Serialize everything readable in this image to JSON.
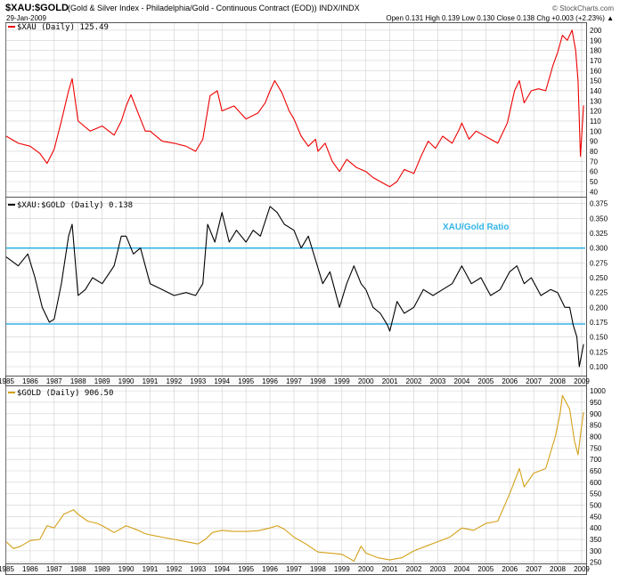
{
  "header": {
    "symbol": "$XAU:$GOLD",
    "description": "(Gold & Silver Index - Philadelphia/Gold - Continuous Contract (EOD)) INDX/INDX",
    "date": "29-Jan-2009",
    "watermark": "© StockCharts.com",
    "quote": "Open 0.131  High 0.139  Low 0.130  Close 0.138  Chg +0.003 (+2.23%) ▲"
  },
  "colors": {
    "xau": "#ee0000",
    "ratio": "#000000",
    "gold": "#d4a017",
    "ref_lines": "#33b5e5",
    "grid": "#d0d0d0",
    "annotation": "#33b5e5"
  },
  "years": [
    "1985",
    "1986",
    "1987",
    "1988",
    "1989",
    "1990",
    "1991",
    "1992",
    "1993",
    "1994",
    "1995",
    "1996",
    "1997",
    "1998",
    "1999",
    "2000",
    "2001",
    "2002",
    "2003",
    "2004",
    "2005",
    "2006",
    "2007",
    "2008",
    "2009"
  ],
  "chart_data": [
    {
      "type": "line",
      "id": "xau",
      "legend": "$XAU (Daily) 125.49",
      "color": "#ee0000",
      "ylim": [
        35,
        207
      ],
      "yticks": [
        40,
        50,
        60,
        70,
        80,
        90,
        100,
        110,
        120,
        130,
        140,
        150,
        160,
        170,
        180,
        190,
        200
      ],
      "x": [
        1985.0,
        1985.5,
        1986.0,
        1986.4,
        1986.7,
        1987.0,
        1987.3,
        1987.6,
        1987.75,
        1988.0,
        1988.5,
        1989.0,
        1989.5,
        1989.8,
        1990.0,
        1990.2,
        1990.5,
        1990.8,
        1991.0,
        1991.5,
        1992.0,
        1992.5,
        1992.9,
        1993.2,
        1993.5,
        1993.8,
        1994.0,
        1994.5,
        1995.0,
        1995.5,
        1995.8,
        1996.0,
        1996.2,
        1996.5,
        1996.8,
        1997.0,
        1997.3,
        1997.6,
        1997.9,
        1998.0,
        1998.3,
        1998.6,
        1998.9,
        1999.2,
        1999.6,
        1999.8,
        2000.0,
        2000.3,
        2000.6,
        2000.9,
        2001.0,
        2001.3,
        2001.6,
        2002.0,
        2002.3,
        2002.6,
        2002.9,
        2003.2,
        2003.6,
        2003.9,
        2004.0,
        2004.3,
        2004.6,
        2004.9,
        2005.2,
        2005.5,
        2005.9,
        2006.2,
        2006.4,
        2006.6,
        2006.9,
        2007.2,
        2007.5,
        2007.8,
        2008.0,
        2008.2,
        2008.4,
        2008.6,
        2008.75,
        2008.85,
        2008.95,
        2009.08
      ],
      "y": [
        95,
        88,
        85,
        78,
        68,
        82,
        110,
        140,
        152,
        110,
        100,
        105,
        96,
        110,
        125,
        136,
        118,
        100,
        100,
        90,
        88,
        85,
        80,
        92,
        135,
        140,
        120,
        125,
        112,
        118,
        128,
        140,
        150,
        138,
        120,
        112,
        95,
        85,
        92,
        80,
        88,
        70,
        60,
        72,
        64,
        62,
        60,
        54,
        50,
        46,
        45,
        50,
        62,
        58,
        75,
        90,
        83,
        95,
        88,
        102,
        108,
        92,
        100,
        96,
        92,
        88,
        108,
        140,
        150,
        128,
        140,
        142,
        140,
        165,
        178,
        195,
        190,
        200,
        180,
        150,
        75,
        125.49
      ]
    },
    {
      "type": "line",
      "id": "ratio",
      "legend": "$XAU:$GOLD (Daily) 0.138",
      "annotation": "XAU/Gold Ratio",
      "color": "#000000",
      "ylim": [
        0.085,
        0.385
      ],
      "yticks": [
        0.1,
        0.125,
        0.15,
        0.175,
        0.2,
        0.225,
        0.25,
        0.275,
        0.3,
        0.325,
        0.35,
        0.375
      ],
      "reference_lines": [
        0.3,
        0.172
      ],
      "x": [
        1985.0,
        1985.5,
        1985.9,
        1986.2,
        1986.5,
        1986.8,
        1987.0,
        1987.3,
        1987.6,
        1987.75,
        1988.0,
        1988.3,
        1988.6,
        1989.0,
        1989.5,
        1989.8,
        1990.0,
        1990.3,
        1990.6,
        1991.0,
        1991.5,
        1992.0,
        1992.5,
        1992.9,
        1993.2,
        1993.4,
        1993.7,
        1994.0,
        1994.3,
        1994.6,
        1995.0,
        1995.3,
        1995.6,
        1996.0,
        1996.3,
        1996.6,
        1997.0,
        1997.3,
        1997.6,
        1997.9,
        1998.2,
        1998.5,
        1998.9,
        1999.2,
        1999.5,
        1999.8,
        2000.0,
        2000.3,
        2000.6,
        2000.9,
        2001.0,
        2001.3,
        2001.6,
        2002.0,
        2002.4,
        2002.8,
        2003.2,
        2003.6,
        2004.0,
        2004.4,
        2004.8,
        2005.2,
        2005.6,
        2006.0,
        2006.3,
        2006.6,
        2006.9,
        2007.3,
        2007.7,
        2008.0,
        2008.3,
        2008.5,
        2008.65,
        2008.8,
        2008.9,
        2009.08
      ],
      "y": [
        0.285,
        0.27,
        0.29,
        0.25,
        0.2,
        0.175,
        0.18,
        0.24,
        0.32,
        0.34,
        0.22,
        0.23,
        0.25,
        0.24,
        0.27,
        0.32,
        0.32,
        0.29,
        0.3,
        0.24,
        0.23,
        0.22,
        0.225,
        0.22,
        0.24,
        0.34,
        0.31,
        0.36,
        0.31,
        0.33,
        0.31,
        0.33,
        0.32,
        0.37,
        0.36,
        0.34,
        0.33,
        0.3,
        0.32,
        0.28,
        0.24,
        0.26,
        0.2,
        0.24,
        0.27,
        0.24,
        0.23,
        0.2,
        0.19,
        0.17,
        0.16,
        0.21,
        0.19,
        0.2,
        0.23,
        0.22,
        0.23,
        0.24,
        0.27,
        0.24,
        0.25,
        0.22,
        0.23,
        0.26,
        0.27,
        0.24,
        0.25,
        0.22,
        0.23,
        0.225,
        0.2,
        0.2,
        0.17,
        0.15,
        0.1,
        0.138
      ]
    },
    {
      "type": "line",
      "id": "gold",
      "legend": "$GOLD (Daily) 906.50",
      "color": "#d4a017",
      "ylim": [
        245,
        1020
      ],
      "yticks": [
        250,
        300,
        350,
        400,
        450,
        500,
        550,
        600,
        650,
        700,
        750,
        800,
        850,
        900,
        950,
        1000
      ],
      "x": [
        1985.0,
        1985.3,
        1985.6,
        1986.0,
        1986.4,
        1986.7,
        1987.0,
        1987.4,
        1987.8,
        1988.0,
        1988.4,
        1988.8,
        1989.0,
        1989.5,
        1990.0,
        1990.5,
        1990.8,
        1991.0,
        1991.5,
        1992.0,
        1992.5,
        1993.0,
        1993.3,
        1993.6,
        1994.0,
        1994.5,
        1995.0,
        1995.5,
        1996.0,
        1996.3,
        1996.6,
        1997.0,
        1997.5,
        1998.0,
        1998.5,
        1999.0,
        1999.5,
        1999.8,
        2000.0,
        2000.5,
        2001.0,
        2001.5,
        2002.0,
        2002.5,
        2003.0,
        2003.5,
        2004.0,
        2004.5,
        2005.0,
        2005.5,
        2006.0,
        2006.4,
        2006.6,
        2007.0,
        2007.5,
        2007.9,
        2008.1,
        2008.2,
        2008.5,
        2008.7,
        2008.85,
        2009.0,
        2009.08
      ],
      "y": [
        340,
        310,
        320,
        345,
        350,
        410,
        400,
        460,
        480,
        460,
        430,
        420,
        410,
        380,
        410,
        390,
        375,
        370,
        360,
        350,
        340,
        330,
        350,
        380,
        390,
        385,
        385,
        388,
        400,
        410,
        395,
        360,
        330,
        295,
        290,
        285,
        255,
        320,
        290,
        270,
        260,
        270,
        300,
        320,
        340,
        360,
        400,
        390,
        420,
        430,
        550,
        660,
        580,
        640,
        660,
        800,
        900,
        980,
        920,
        780,
        720,
        850,
        906.5
      ]
    }
  ]
}
